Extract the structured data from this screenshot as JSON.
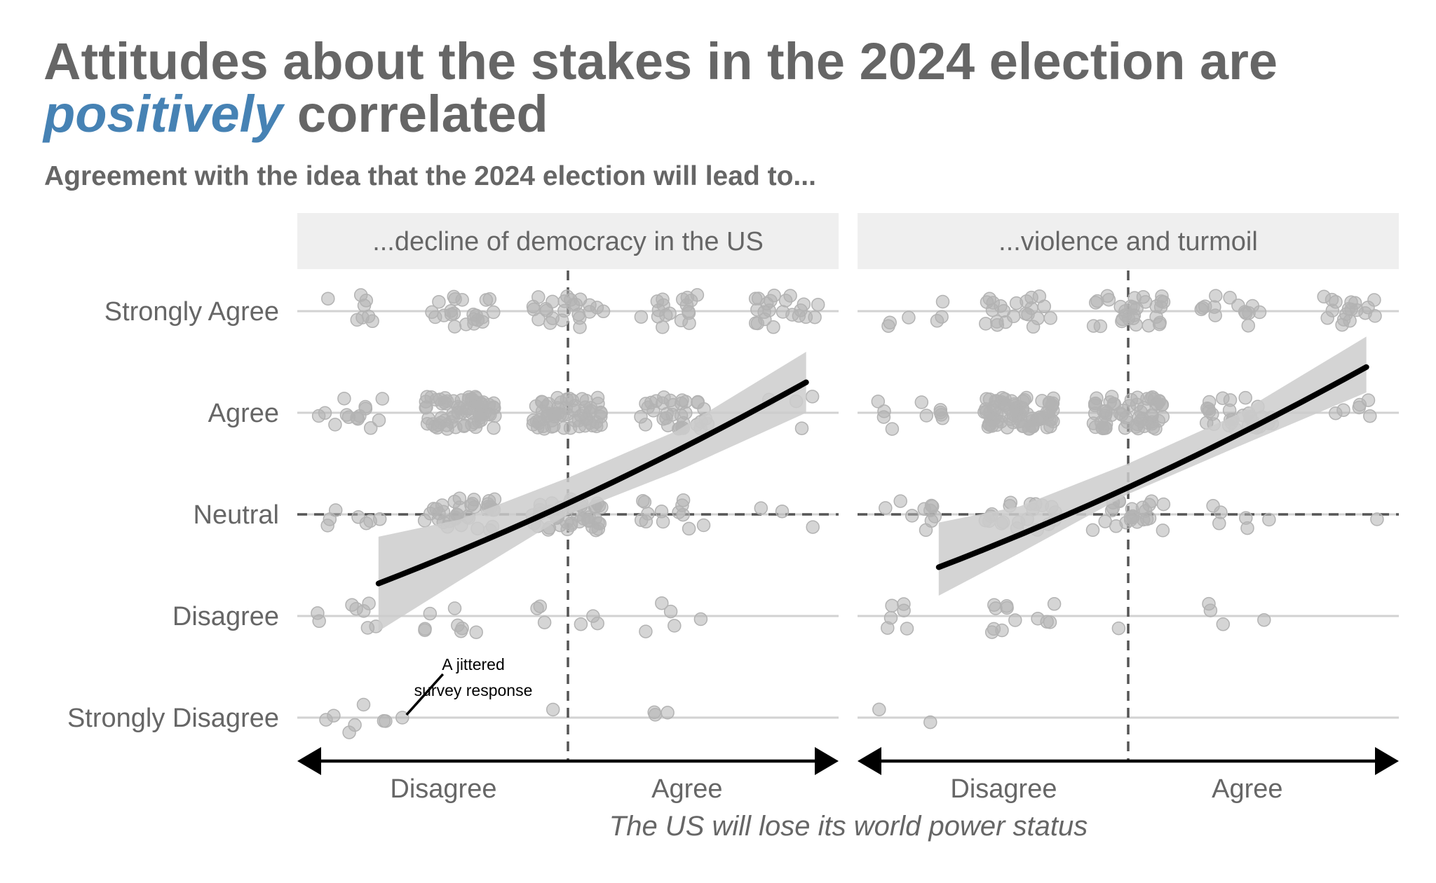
{
  "title": {
    "part1": "Attitudes about the stakes in the 2024 election are",
    "highlight": "positively",
    "part2": "correlated"
  },
  "subtitle": "Agreement with the idea that the 2024 election will lead to...",
  "colors": {
    "text": "#666666",
    "highlight": "#4682b4",
    "points": "#b3b3b3",
    "ribbon": "#cccccc",
    "strip": "#efefef",
    "fit_line": "#000000",
    "reference_lines": "#555555"
  },
  "chart_data": {
    "type": "scatter",
    "y_categories": [
      "Strongly Disagree",
      "Disagree",
      "Neutral",
      "Agree",
      "Strongly Agree"
    ],
    "x_arrow_labels": [
      "Disagree",
      "Agree"
    ],
    "xlabel": "The US will lose its world power status",
    "xlim": [
      0.5,
      5.5
    ],
    "ylim": [
      0.6,
      5.4
    ],
    "reference_lines": {
      "x": 3,
      "y": 3
    },
    "annotation": {
      "text_lines": [
        "A jittered",
        "survey response"
      ],
      "point": [
        1.47,
        1.0
      ]
    },
    "facets": [
      {
        "label": "...decline of democracy in the US",
        "fit": {
          "x": [
            1.25,
            5.2
          ],
          "y": [
            2.32,
            4.3
          ]
        },
        "ribbon": {
          "x": [
            1.25,
            2.0,
            3.0,
            4.0,
            5.2
          ],
          "upper": [
            2.78,
            2.95,
            3.36,
            3.82,
            4.6
          ],
          "lower": [
            1.85,
            2.35,
            3.0,
            3.42,
            4.0
          ]
        },
        "cells": [
          [
            1,
            5,
            8
          ],
          [
            2,
            5,
            22
          ],
          [
            3,
            5,
            24
          ],
          [
            4,
            5,
            18
          ],
          [
            5,
            5,
            22
          ],
          [
            1,
            4,
            14
          ],
          [
            2,
            4,
            70
          ],
          [
            3,
            4,
            62
          ],
          [
            4,
            4,
            34
          ],
          [
            5,
            4,
            4
          ],
          [
            1,
            3,
            7
          ],
          [
            2,
            3,
            36
          ],
          [
            3,
            3,
            42
          ],
          [
            4,
            3,
            13
          ],
          [
            5,
            3,
            3
          ],
          [
            1,
            2,
            8
          ],
          [
            2,
            2,
            8
          ],
          [
            3,
            2,
            6
          ],
          [
            4,
            2,
            5
          ],
          [
            1,
            1,
            7
          ],
          [
            3,
            1,
            1
          ],
          [
            4,
            1,
            3
          ]
        ]
      },
      {
        "label": "...violence and turmoil",
        "fit": {
          "x": [
            1.25,
            5.2
          ],
          "y": [
            2.48,
            4.45
          ]
        },
        "ribbon": {
          "x": [
            1.25,
            2.0,
            3.0,
            4.0,
            5.2
          ],
          "upper": [
            2.92,
            3.08,
            3.5,
            3.98,
            4.75
          ],
          "lower": [
            2.2,
            2.62,
            3.2,
            3.66,
            4.2
          ]
        },
        "cells": [
          [
            1,
            5,
            6
          ],
          [
            2,
            5,
            22
          ],
          [
            3,
            5,
            30
          ],
          [
            4,
            5,
            14
          ],
          [
            5,
            5,
            18
          ],
          [
            1,
            4,
            10
          ],
          [
            2,
            4,
            80
          ],
          [
            3,
            4,
            60
          ],
          [
            4,
            4,
            30
          ],
          [
            5,
            4,
            6
          ],
          [
            1,
            3,
            10
          ],
          [
            2,
            3,
            20
          ],
          [
            3,
            3,
            24
          ],
          [
            4,
            3,
            6
          ],
          [
            5,
            3,
            1
          ],
          [
            1,
            2,
            6
          ],
          [
            2,
            2,
            12
          ],
          [
            3,
            2,
            1
          ],
          [
            4,
            2,
            4
          ],
          [
            1,
            1,
            2
          ]
        ]
      }
    ]
  }
}
